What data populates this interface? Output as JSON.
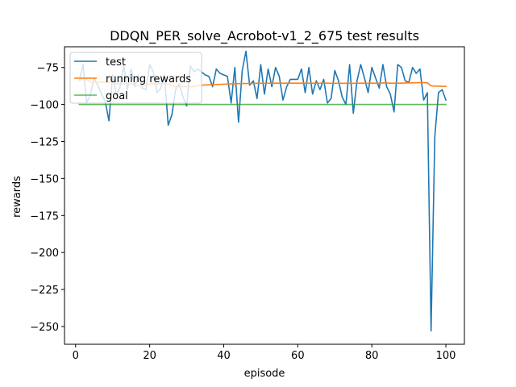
{
  "chart_data": {
    "type": "line",
    "title": "DDQN_PER_solve_Acrobot-v1_2_675 test results",
    "xlabel": "episode",
    "ylabel": "rewards",
    "xlim": [
      -3,
      105
    ],
    "ylim": [
      -262,
      -61
    ],
    "xticks": [
      0,
      20,
      40,
      60,
      80,
      100
    ],
    "yticks": [
      -75,
      -100,
      -125,
      -150,
      -175,
      -200,
      -225,
      -250
    ],
    "ytick_labels": [
      "−75",
      "−100",
      "−125",
      "−150",
      "−175",
      "−200",
      "−225",
      "−250"
    ],
    "legend_position": "upper-left",
    "series": [
      {
        "name": "test",
        "color": "#1f77b4",
        "x": [
          1,
          2,
          3,
          4,
          5,
          6,
          7,
          8,
          9,
          10,
          11,
          12,
          13,
          14,
          15,
          16,
          17,
          18,
          19,
          20,
          21,
          22,
          23,
          24,
          25,
          26,
          27,
          28,
          29,
          30,
          31,
          32,
          33,
          34,
          35,
          36,
          37,
          38,
          39,
          40,
          41,
          42,
          43,
          44,
          45,
          46,
          47,
          48,
          49,
          50,
          51,
          52,
          53,
          54,
          55,
          56,
          57,
          58,
          59,
          60,
          61,
          62,
          63,
          64,
          65,
          66,
          67,
          68,
          69,
          70,
          71,
          72,
          73,
          74,
          75,
          76,
          77,
          78,
          79,
          80,
          81,
          82,
          83,
          84,
          85,
          86,
          87,
          88,
          89,
          90,
          91,
          92,
          93,
          94,
          95,
          96,
          97,
          98,
          99,
          100
        ],
        "values": [
          -84,
          -73,
          -99,
          -93,
          -82,
          -87,
          -93,
          -98,
          -111,
          -80,
          -94,
          -88,
          -74,
          -90,
          -76,
          -88,
          -80,
          -89,
          -90,
          -73,
          -78,
          -92,
          -89,
          -80,
          -114,
          -107,
          -90,
          -86,
          -95,
          -101,
          -74,
          -78,
          -76,
          -78,
          -80,
          -81,
          -88,
          -76,
          -79,
          -80,
          -81,
          -99,
          -75,
          -112,
          -77,
          -64,
          -87,
          -84,
          -96,
          -73,
          -93,
          -76,
          -88,
          -75,
          -81,
          -97,
          -88,
          -83,
          -83,
          -83,
          -76,
          -92,
          -75,
          -93,
          -84,
          -90,
          -83,
          -99,
          -96,
          -77,
          -84,
          -95,
          -100,
          -73,
          -106,
          -84,
          -73,
          -82,
          -92,
          -75,
          -82,
          -89,
          -73,
          -88,
          -93,
          -105,
          -73,
          -75,
          -84,
          -85,
          -75,
          -79,
          -76,
          -97,
          -92,
          -253,
          -122,
          -92,
          -90,
          -97
        ]
      },
      {
        "name": "running rewards",
        "color": "#ff7f0e",
        "x": [
          1,
          2,
          3,
          4,
          5,
          6,
          7,
          8,
          9,
          10,
          11,
          12,
          13,
          14,
          15,
          16,
          17,
          18,
          19,
          20,
          21,
          22,
          23,
          24,
          25,
          26,
          27,
          28,
          29,
          30,
          31,
          32,
          33,
          34,
          35,
          36,
          37,
          38,
          39,
          40,
          41,
          42,
          43,
          44,
          45,
          46,
          47,
          48,
          49,
          50,
          51,
          52,
          53,
          54,
          55,
          56,
          57,
          58,
          59,
          60,
          61,
          62,
          63,
          64,
          65,
          66,
          67,
          68,
          69,
          70,
          71,
          72,
          73,
          74,
          75,
          76,
          77,
          78,
          79,
          80,
          81,
          82,
          83,
          84,
          85,
          86,
          87,
          88,
          89,
          90,
          91,
          92,
          93,
          94,
          95,
          96,
          97,
          98,
          99,
          100
        ],
        "values": [
          -84,
          -82,
          -83,
          -85,
          -85,
          -85,
          -85,
          -85,
          -85,
          -85,
          -86,
          -86,
          -86,
          -86,
          -86,
          -87,
          -87,
          -87,
          -87,
          -86,
          -86,
          -86,
          -86,
          -86,
          -86,
          -87,
          -88,
          -88,
          -88,
          -88,
          -88,
          -88,
          -87,
          -87,
          -86.8,
          -86.7,
          -86.6,
          -86.5,
          -86.4,
          -86.3,
          -86.2,
          -86.1,
          -86,
          -85.9,
          -85.9,
          -85.8,
          -85.8,
          -85.8,
          -85.7,
          -85.7,
          -85.7,
          -85.6,
          -85.6,
          -85.6,
          -85.6,
          -85.6,
          -85.6,
          -85.6,
          -85.6,
          -85.6,
          -85.6,
          -85.6,
          -85.6,
          -85.6,
          -85.6,
          -85.6,
          -85.6,
          -85.6,
          -85.7,
          -85.7,
          -85.7,
          -85.7,
          -85.7,
          -85.6,
          -85.7,
          -85.7,
          -85.6,
          -85.6,
          -85.6,
          -85.6,
          -85.6,
          -85.6,
          -85.5,
          -85.5,
          -85.6,
          -85.6,
          -85.6,
          -85.6,
          -85.5,
          -85.4,
          -85.4,
          -85.3,
          -85.3,
          -85.2,
          -85.4,
          -87.4,
          -87.6,
          -87.6,
          -87.7,
          -87.8
        ]
      },
      {
        "name": "goal",
        "color": "#2ca02c",
        "x": [
          1,
          100
        ],
        "values": [
          -100,
          -100
        ]
      }
    ]
  }
}
